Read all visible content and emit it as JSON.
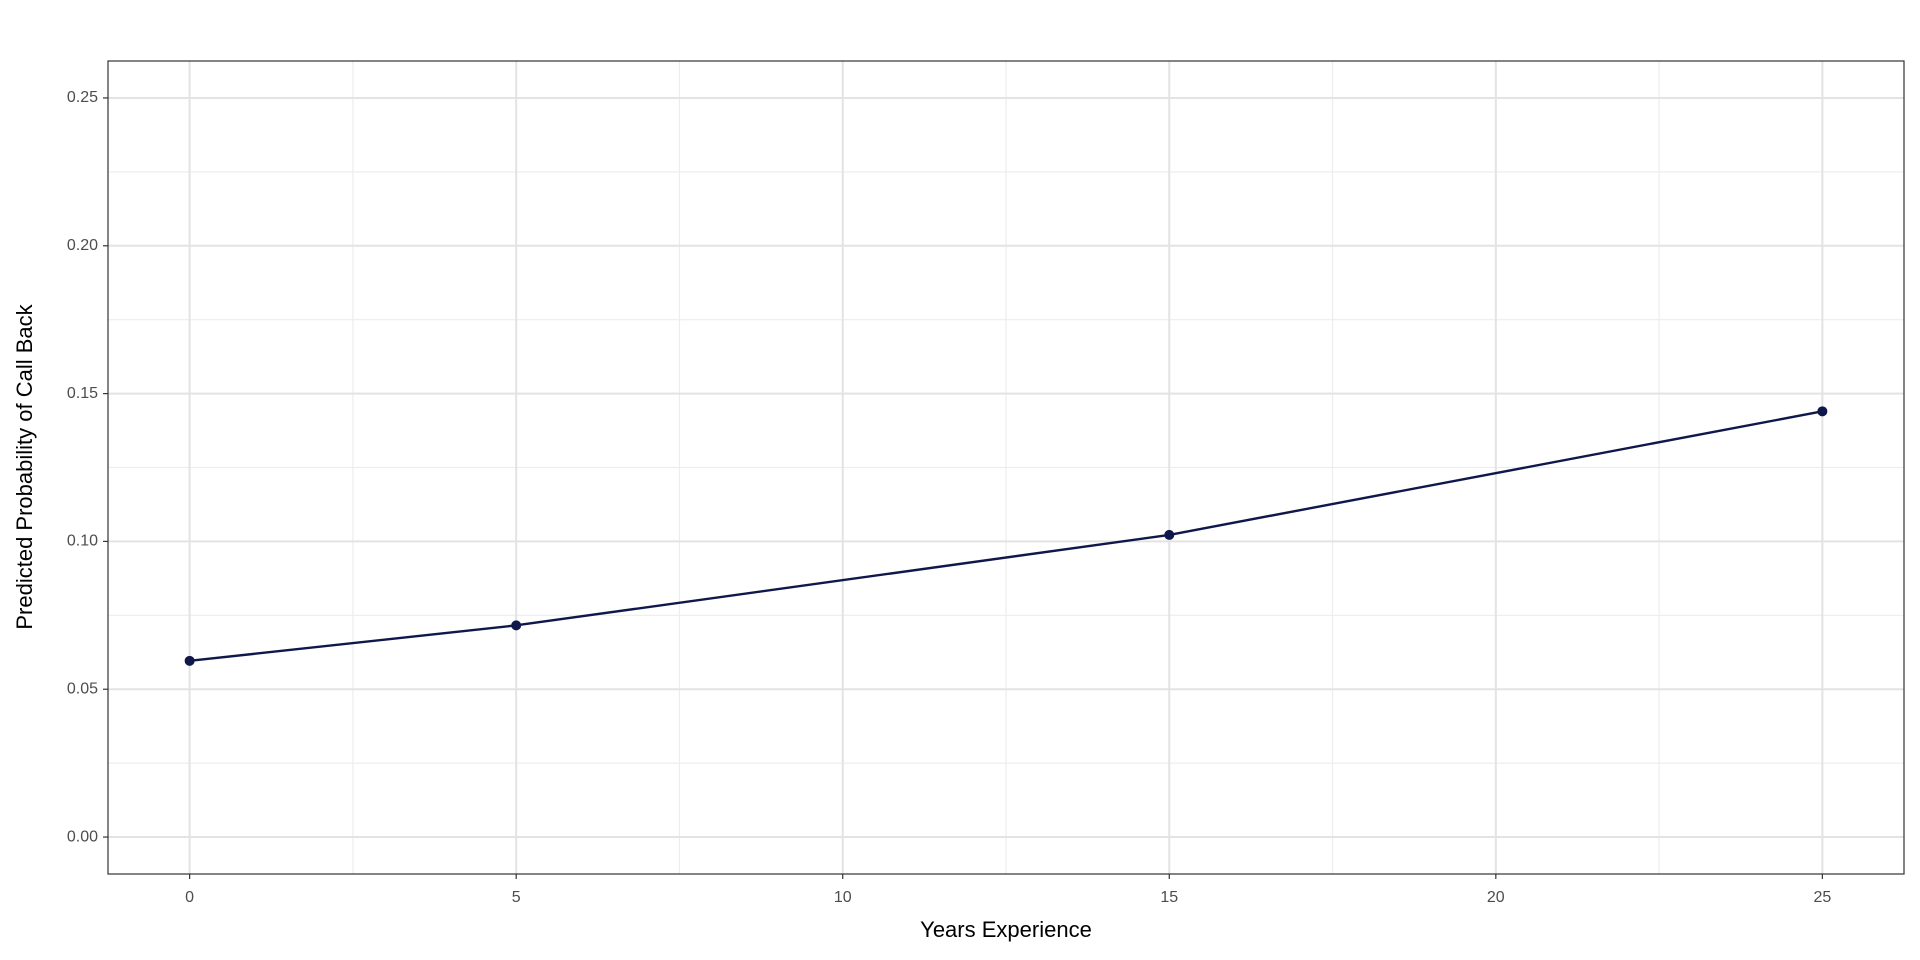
{
  "chart_data": {
    "type": "line",
    "x_label": "Years Experience",
    "y_label": "Predicted Probability of Call Back",
    "x": [
      0,
      5,
      15,
      25
    ],
    "series": [
      {
        "color": "#10174a",
        "values": [
          0.0596,
          0.0716,
          0.1022,
          0.144
        ]
      }
    ],
    "xlim": [
      -1.25,
      26.25
    ],
    "xticks": [
      0,
      5,
      10,
      15,
      20,
      25
    ],
    "ylim": [
      -0.0125,
      0.2625
    ],
    "yticks": [
      {
        "value": 0,
        "label": "0.00"
      },
      {
        "value": 0.05,
        "label": "0.05"
      },
      {
        "value": 0.1,
        "label": "0.10"
      },
      {
        "value": 0.15,
        "label": "0.15"
      },
      {
        "value": 0.2,
        "label": "0.20"
      },
      {
        "value": 0.25,
        "label": "0.25"
      }
    ],
    "grid": true,
    "minor_grid": true,
    "markers": true
  }
}
